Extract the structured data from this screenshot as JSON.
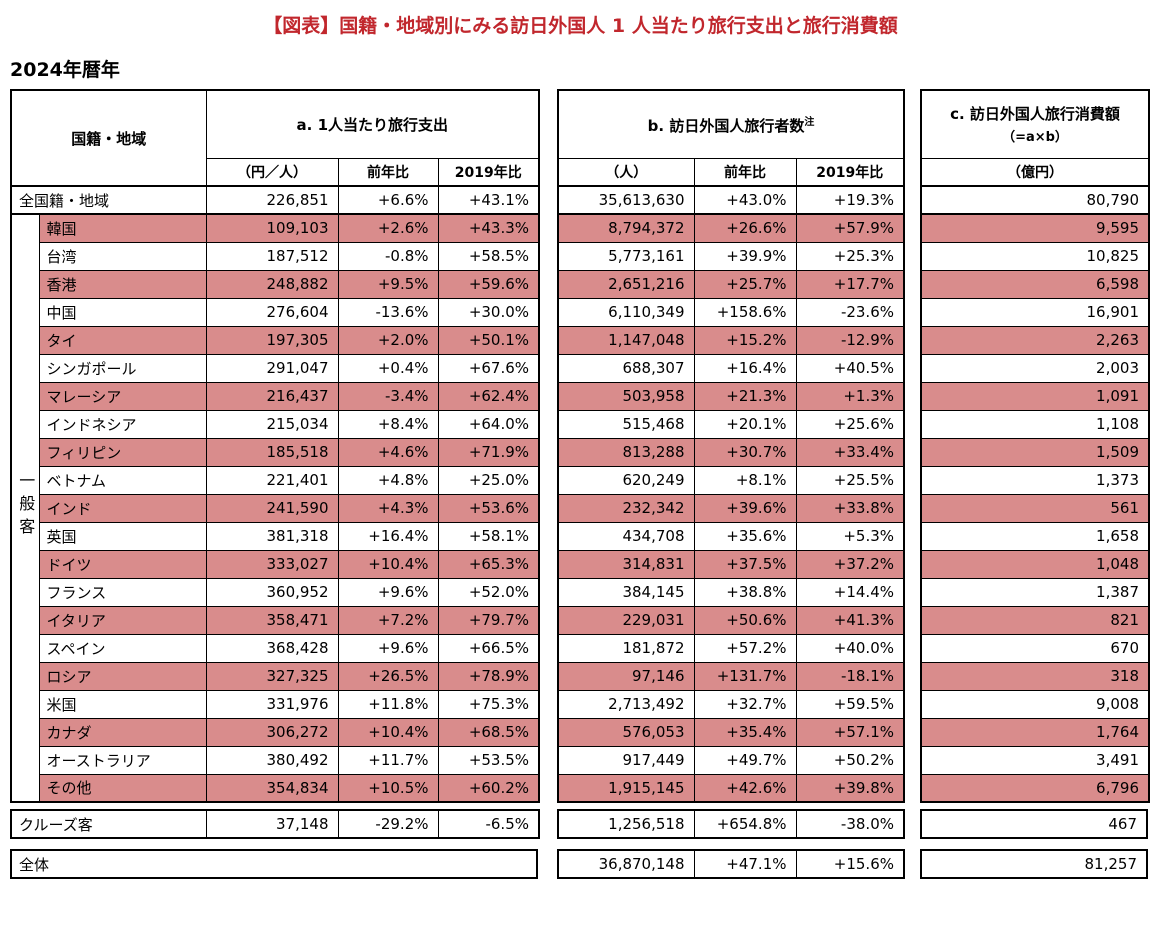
{
  "page": {
    "year_label": "2024年暦年"
  },
  "colors": {
    "highlight": "#d98c8c",
    "title": "#c1272d"
  },
  "chart_data": {
    "type": "table",
    "title": "【図表】国籍・地域別にみる訪日外国人 1 人当たり旅行支出と旅行消費額",
    "corner_header": "国籍・地域",
    "group_label": "一般客",
    "sections": {
      "a": {
        "title": "a. 1人当たり旅行支出",
        "columns": [
          "（円／人）",
          "前年比",
          "2019年比"
        ]
      },
      "b": {
        "title": "b. 訪日外国人旅行者数",
        "note": "注",
        "columns": [
          "（人）",
          "前年比",
          "2019年比"
        ]
      },
      "c": {
        "title": "c. 訪日外国人旅行消費額",
        "subtitle": "（=a×b）",
        "columns": [
          "（億円）"
        ]
      }
    },
    "all_region_row": {
      "name": "全国籍・地域",
      "a": [
        "226,851",
        "+6.6%",
        "+43.1%"
      ],
      "b": [
        "35,613,630",
        "+43.0%",
        "+19.3%"
      ],
      "c": "80,790"
    },
    "general_rows": [
      {
        "name": "韓国",
        "hl": true,
        "a": [
          "109,103",
          "+2.6%",
          "+43.3%"
        ],
        "b": [
          "8,794,372",
          "+26.6%",
          "+57.9%"
        ],
        "c": "9,595"
      },
      {
        "name": "台湾",
        "hl": false,
        "a": [
          "187,512",
          "-0.8%",
          "+58.5%"
        ],
        "b": [
          "5,773,161",
          "+39.9%",
          "+25.3%"
        ],
        "c": "10,825"
      },
      {
        "name": "香港",
        "hl": true,
        "a": [
          "248,882",
          "+9.5%",
          "+59.6%"
        ],
        "b": [
          "2,651,216",
          "+25.7%",
          "+17.7%"
        ],
        "c": "6,598"
      },
      {
        "name": "中国",
        "hl": false,
        "a": [
          "276,604",
          "-13.6%",
          "+30.0%"
        ],
        "b": [
          "6,110,349",
          "+158.6%",
          "-23.6%"
        ],
        "c": "16,901"
      },
      {
        "name": "タイ",
        "hl": true,
        "a": [
          "197,305",
          "+2.0%",
          "+50.1%"
        ],
        "b": [
          "1,147,048",
          "+15.2%",
          "-12.9%"
        ],
        "c": "2,263"
      },
      {
        "name": "シンガポール",
        "hl": false,
        "a": [
          "291,047",
          "+0.4%",
          "+67.6%"
        ],
        "b": [
          "688,307",
          "+16.4%",
          "+40.5%"
        ],
        "c": "2,003"
      },
      {
        "name": "マレーシア",
        "hl": true,
        "a": [
          "216,437",
          "-3.4%",
          "+62.4%"
        ],
        "b": [
          "503,958",
          "+21.3%",
          "+1.3%"
        ],
        "c": "1,091"
      },
      {
        "name": "インドネシア",
        "hl": false,
        "a": [
          "215,034",
          "+8.4%",
          "+64.0%"
        ],
        "b": [
          "515,468",
          "+20.1%",
          "+25.6%"
        ],
        "c": "1,108"
      },
      {
        "name": "フィリピン",
        "hl": true,
        "a": [
          "185,518",
          "+4.6%",
          "+71.9%"
        ],
        "b": [
          "813,288",
          "+30.7%",
          "+33.4%"
        ],
        "c": "1,509"
      },
      {
        "name": "ベトナム",
        "hl": false,
        "a": [
          "221,401",
          "+4.8%",
          "+25.0%"
        ],
        "b": [
          "620,249",
          "+8.1%",
          "+25.5%"
        ],
        "c": "1,373"
      },
      {
        "name": "インド",
        "hl": true,
        "a": [
          "241,590",
          "+4.3%",
          "+53.6%"
        ],
        "b": [
          "232,342",
          "+39.6%",
          "+33.8%"
        ],
        "c": "561"
      },
      {
        "name": "英国",
        "hl": false,
        "a": [
          "381,318",
          "+16.4%",
          "+58.1%"
        ],
        "b": [
          "434,708",
          "+35.6%",
          "+5.3%"
        ],
        "c": "1,658"
      },
      {
        "name": "ドイツ",
        "hl": true,
        "a": [
          "333,027",
          "+10.4%",
          "+65.3%"
        ],
        "b": [
          "314,831",
          "+37.5%",
          "+37.2%"
        ],
        "c": "1,048"
      },
      {
        "name": "フランス",
        "hl": false,
        "a": [
          "360,952",
          "+9.6%",
          "+52.0%"
        ],
        "b": [
          "384,145",
          "+38.8%",
          "+14.4%"
        ],
        "c": "1,387"
      },
      {
        "name": "イタリア",
        "hl": true,
        "a": [
          "358,471",
          "+7.2%",
          "+79.7%"
        ],
        "b": [
          "229,031",
          "+50.6%",
          "+41.3%"
        ],
        "c": "821"
      },
      {
        "name": "スペイン",
        "hl": false,
        "a": [
          "368,428",
          "+9.6%",
          "+66.5%"
        ],
        "b": [
          "181,872",
          "+57.2%",
          "+40.0%"
        ],
        "c": "670"
      },
      {
        "name": "ロシア",
        "hl": true,
        "a": [
          "327,325",
          "+26.5%",
          "+78.9%"
        ],
        "b": [
          "97,146",
          "+131.7%",
          "-18.1%"
        ],
        "c": "318"
      },
      {
        "name": "米国",
        "hl": false,
        "a": [
          "331,976",
          "+11.8%",
          "+75.3%"
        ],
        "b": [
          "2,713,492",
          "+32.7%",
          "+59.5%"
        ],
        "c": "9,008"
      },
      {
        "name": "カナダ",
        "hl": true,
        "a": [
          "306,272",
          "+10.4%",
          "+68.5%"
        ],
        "b": [
          "576,053",
          "+35.4%",
          "+57.1%"
        ],
        "c": "1,764"
      },
      {
        "name": "オーストラリア",
        "hl": false,
        "a": [
          "380,492",
          "+11.7%",
          "+53.5%"
        ],
        "b": [
          "917,449",
          "+49.7%",
          "+50.2%"
        ],
        "c": "3,491"
      },
      {
        "name": "その他",
        "hl": true,
        "a": [
          "354,834",
          "+10.5%",
          "+60.2%"
        ],
        "b": [
          "1,915,145",
          "+42.6%",
          "+39.8%"
        ],
        "c": "6,796"
      }
    ],
    "cruise_row": {
      "name": "クルーズ客",
      "a": [
        "37,148",
        "-29.2%",
        "-6.5%"
      ],
      "b": [
        "1,256,518",
        "+654.8%",
        "-38.0%"
      ],
      "c": "467"
    },
    "total_row": {
      "name": "全体",
      "b": [
        "36,870,148",
        "+47.1%",
        "+15.6%"
      ],
      "c": "81,257"
    }
  }
}
